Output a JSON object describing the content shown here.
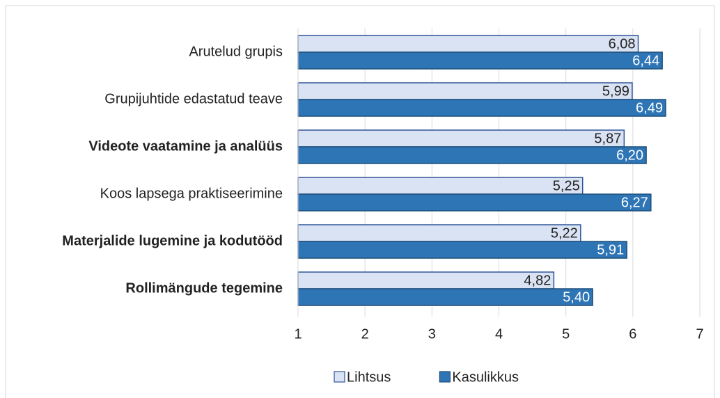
{
  "chart_data": {
    "type": "hbar",
    "categories": [
      "Arutelud grupis",
      "Grupijuhtide edastatud teave",
      "Videote vaatamine ja analüüs",
      "Koos lapsega praktiseerimine",
      "Materjalide lugemine ja kodutööd",
      "Rollimängude tegemine"
    ],
    "category_bold": [
      false,
      false,
      true,
      false,
      true,
      true
    ],
    "series": [
      {
        "name": "Lihtsus",
        "color": "#dae3f3",
        "edge": "#2f5597",
        "label_color": "#222222",
        "values": [
          6.08,
          5.99,
          5.87,
          5.25,
          5.22,
          4.82
        ],
        "value_labels": [
          "6,08",
          "5,99",
          "5,87",
          "5,25",
          "5,22",
          "4,82"
        ]
      },
      {
        "name": "Kasulikkus",
        "color": "#2e75b6",
        "edge": "#1f4e79",
        "label_color": "#ffffff",
        "values": [
          6.44,
          6.49,
          6.2,
          6.27,
          5.91,
          5.4
        ],
        "value_labels": [
          "6,44",
          "6,49",
          "6,20",
          "6,27",
          "5,91",
          "5,40"
        ]
      }
    ],
    "xlim": [
      1,
      7
    ],
    "xticks": [
      1,
      2,
      3,
      4,
      5,
      6,
      7
    ],
    "grid": true,
    "legend": "bottom"
  }
}
